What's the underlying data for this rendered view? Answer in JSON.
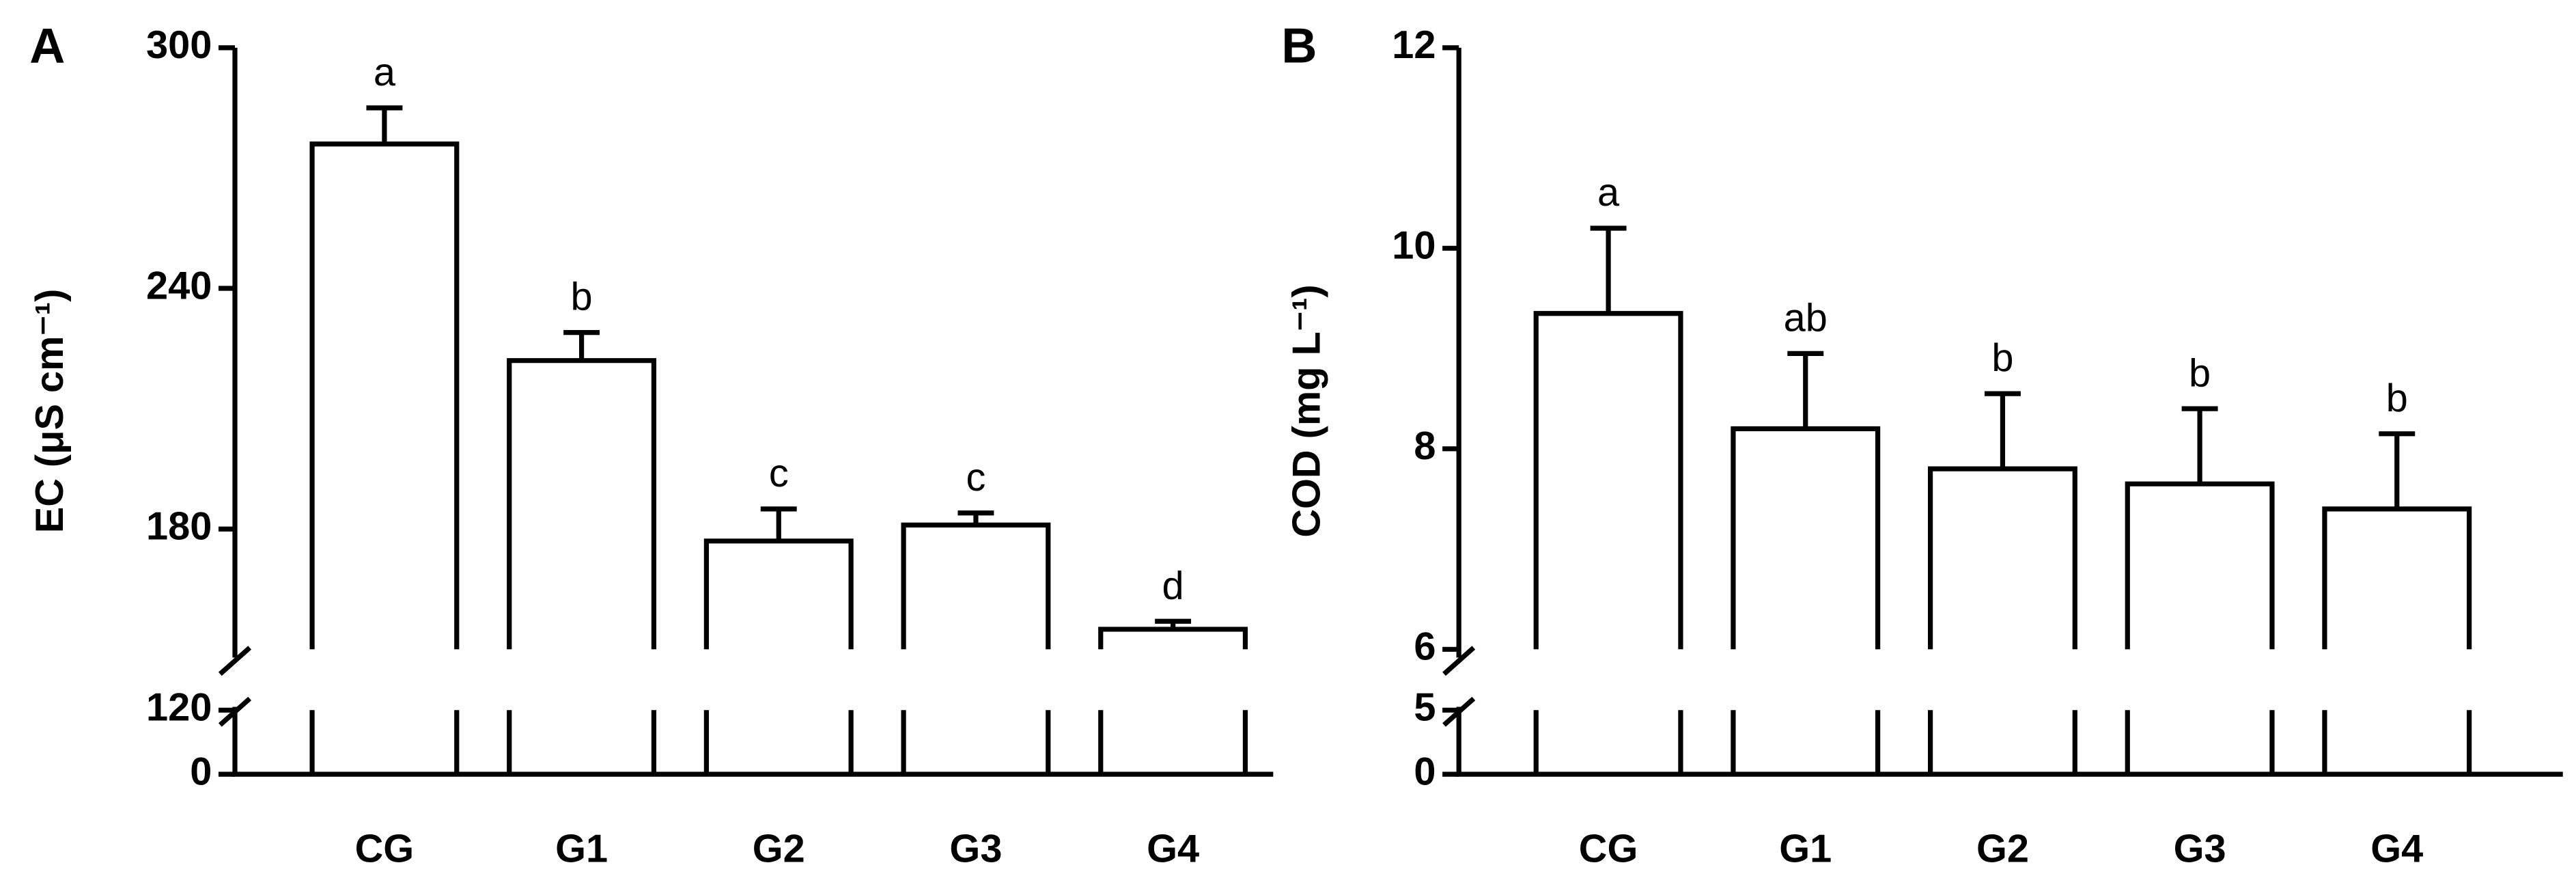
{
  "chart_data": [
    {
      "type": "bar",
      "panel_label": "A",
      "y_label": "EC (μS cm⁻¹)",
      "categories": [
        "CG",
        "G1",
        "G2",
        "G3",
        "G4"
      ],
      "values": [
        276,
        222,
        177,
        181,
        155
      ],
      "errors": [
        9,
        7,
        8,
        3,
        2
      ],
      "annotations": [
        "a",
        "b",
        "c",
        "c",
        "d"
      ],
      "color": "#ffffff",
      "ylim": [
        0,
        300
      ],
      "ybreak": [
        120,
        150
      ],
      "yticks": [
        0,
        120,
        180,
        240,
        300
      ]
    },
    {
      "type": "bar",
      "panel_label": "B",
      "y_label": "COD (mg L⁻¹)",
      "categories": [
        "CG",
        "G1",
        "G2",
        "G3",
        "G4"
      ],
      "values": [
        9.35,
        8.2,
        7.8,
        7.65,
        7.4
      ],
      "errors": [
        0.85,
        0.75,
        0.75,
        0.75,
        0.75
      ],
      "annotations": [
        "a",
        "ab",
        "b",
        "b",
        "b"
      ],
      "color": "#ffffff",
      "ylim": [
        0,
        12
      ],
      "ybreak": [
        5,
        6
      ],
      "yticks": [
        0,
        5,
        6,
        8,
        10,
        12
      ]
    }
  ]
}
